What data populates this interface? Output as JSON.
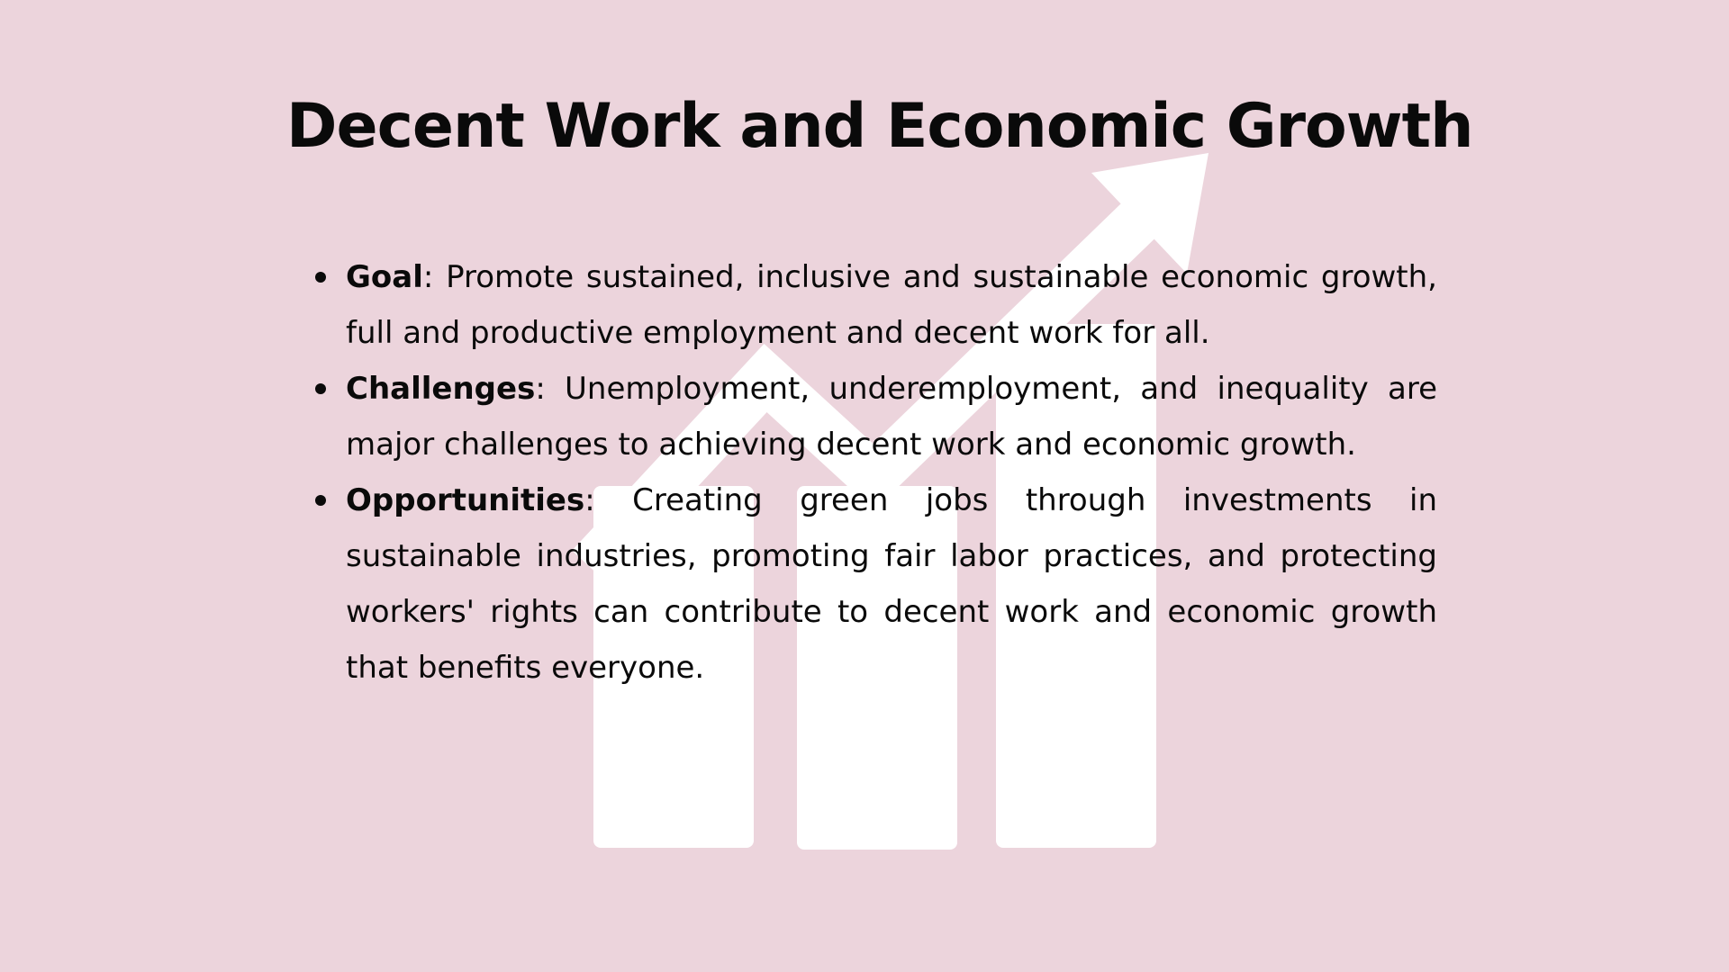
{
  "slide": {
    "title": "Decent Work and Economic Growth",
    "background_color": "#ecd4dc",
    "watermark_icon": "growth-chart-arrow-icon",
    "bullets": [
      {
        "term": "Goal",
        "text": ": Promote sustained, inclusive and sustainable economic growth, full and productive employment and decent work for all."
      },
      {
        "term": "Challenges",
        "text": ": Unemployment, underemployment, and inequality are major challenges to achieving decent work and economic growth."
      },
      {
        "term": "Opportunities",
        "text": ": Creating green jobs through investments in sustainable industries, promoting fair labor practices, and protecting workers' rights can contribute to decent work and economic growth that benefits everyone."
      }
    ]
  }
}
